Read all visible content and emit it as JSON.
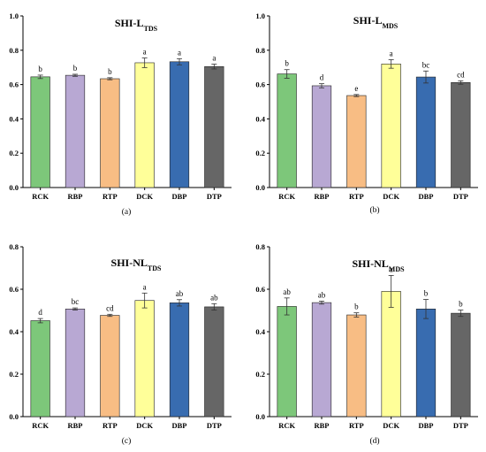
{
  "chart_data": [
    {
      "type": "bar",
      "title": "SHI-L",
      "title_sub": "TDS",
      "caption": "(a)",
      "categories": [
        "RCK",
        "RBP",
        "RTP",
        "DCK",
        "DBP",
        "DTP"
      ],
      "values": [
        0.645,
        0.654,
        0.634,
        0.727,
        0.733,
        0.705
      ],
      "errors": [
        0.01,
        0.006,
        0.006,
        0.028,
        0.018,
        0.014
      ],
      "letters": [
        "b",
        "b",
        "b",
        "a",
        "a",
        "a"
      ],
      "ylim": [
        0,
        1.0
      ],
      "yticks": [
        "0.0",
        "0.2",
        "0.4",
        "0.6",
        "0.8",
        "1.0"
      ],
      "ytick_values": [
        0,
        0.2,
        0.4,
        0.6,
        0.8,
        1.0
      ]
    },
    {
      "type": "bar",
      "title": "SHI-L",
      "title_sub": "MDS",
      "caption": "(b)",
      "categories": [
        "RCK",
        "RBP",
        "RTP",
        "DCK",
        "DBP",
        "DTP"
      ],
      "values": [
        0.662,
        0.593,
        0.536,
        0.72,
        0.644,
        0.612
      ],
      "errors": [
        0.025,
        0.012,
        0.006,
        0.025,
        0.035,
        0.01
      ],
      "letters": [
        "b",
        "d",
        "e",
        "a",
        "bc",
        "cd"
      ],
      "ylim": [
        0,
        1.0
      ],
      "yticks": [
        "0.0",
        "0.2",
        "0.4",
        "0.6",
        "0.8",
        "1.0"
      ],
      "ytick_values": [
        0,
        0.2,
        0.4,
        0.6,
        0.8,
        1.0
      ]
    },
    {
      "type": "bar",
      "title": "SHI-NL",
      "title_sub": "TDS",
      "caption": "(c)",
      "categories": [
        "RCK",
        "RBP",
        "RTP",
        "DCK",
        "DBP",
        "DTP"
      ],
      "values": [
        0.452,
        0.507,
        0.477,
        0.547,
        0.536,
        0.517
      ],
      "errors": [
        0.01,
        0.005,
        0.005,
        0.035,
        0.015,
        0.015
      ],
      "letters": [
        "d",
        "bc",
        "cd",
        "a",
        "ab",
        "ab"
      ],
      "ylim": [
        0,
        0.8
      ],
      "yticks": [
        "0.0",
        "0.2",
        "0.4",
        "0.6",
        "0.8"
      ],
      "ytick_values": [
        0,
        0.2,
        0.4,
        0.6,
        0.8
      ]
    },
    {
      "type": "bar",
      "title": "SHI-NL",
      "title_sub": "MDS",
      "caption": "(d)",
      "categories": [
        "RCK",
        "RBP",
        "RTP",
        "DCK",
        "DBP",
        "DTP"
      ],
      "values": [
        0.519,
        0.537,
        0.479,
        0.59,
        0.507,
        0.487
      ],
      "errors": [
        0.04,
        0.007,
        0.01,
        0.075,
        0.045,
        0.015
      ],
      "letters": [
        "ab",
        "ab",
        "b",
        "a",
        "b",
        "b"
      ],
      "ylim": [
        0,
        0.8
      ],
      "yticks": [
        "0.0",
        "0.2",
        "0.4",
        "0.6",
        "0.8"
      ],
      "ytick_values": [
        0,
        0.2,
        0.4,
        0.6,
        0.8
      ]
    }
  ],
  "colors": {
    "RCK": "#7dc77a",
    "RBP": "#b8a8d3",
    "RTP": "#f8bd84",
    "DCK": "#ffff99",
    "DBP": "#386cb0",
    "DTP": "#666666"
  }
}
